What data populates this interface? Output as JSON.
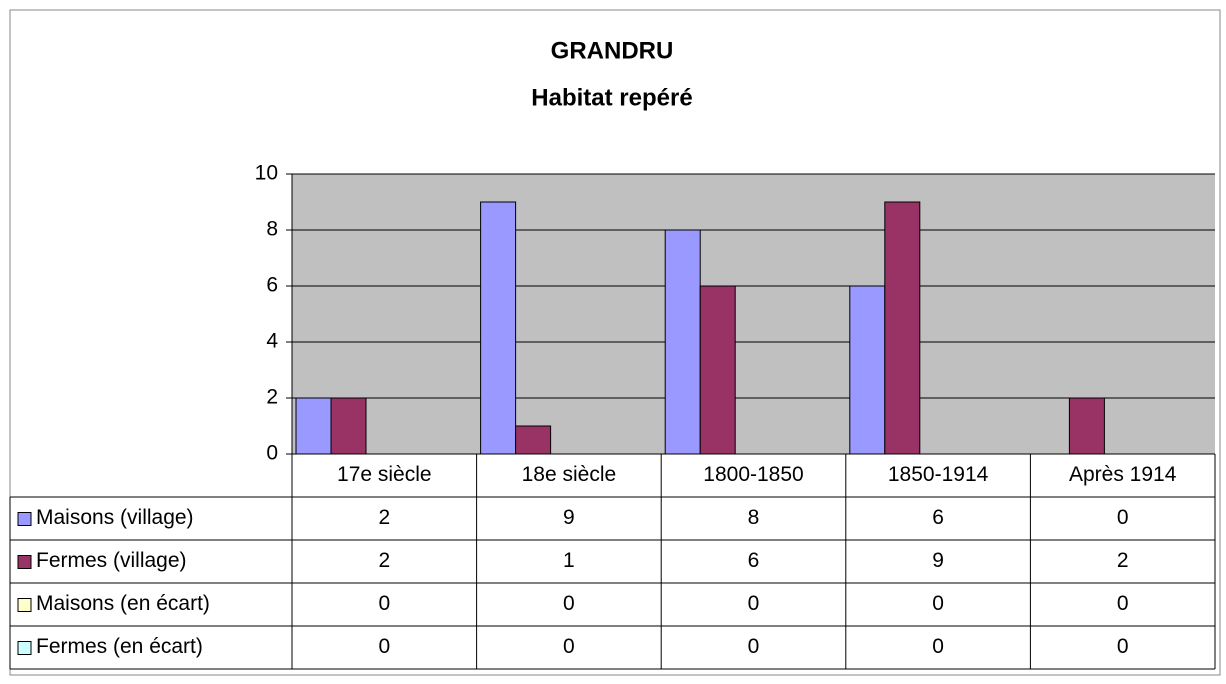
{
  "chart_data": {
    "type": "bar",
    "title": "GRANDRU",
    "subtitle": "Habitat repéré",
    "categories": [
      "17e siècle",
      "18e siècle",
      "1800-1850",
      "1850-1914",
      "Après 1914"
    ],
    "series": [
      {
        "name": "Maisons (village)",
        "color": "#9999ff",
        "values": [
          2,
          9,
          8,
          6,
          0
        ]
      },
      {
        "name": "Fermes (village)",
        "color": "#993366",
        "values": [
          2,
          1,
          6,
          9,
          2
        ]
      },
      {
        "name": "Maisons (en écart)",
        "color": "#ffffcc",
        "values": [
          0,
          0,
          0,
          0,
          0
        ]
      },
      {
        "name": "Fermes (en écart)",
        "color": "#ccffff",
        "values": [
          0,
          0,
          0,
          0,
          0
        ]
      }
    ],
    "ylim": [
      0,
      10
    ],
    "yticks": [
      0,
      2,
      4,
      6,
      8,
      10
    ],
    "grid": true
  }
}
